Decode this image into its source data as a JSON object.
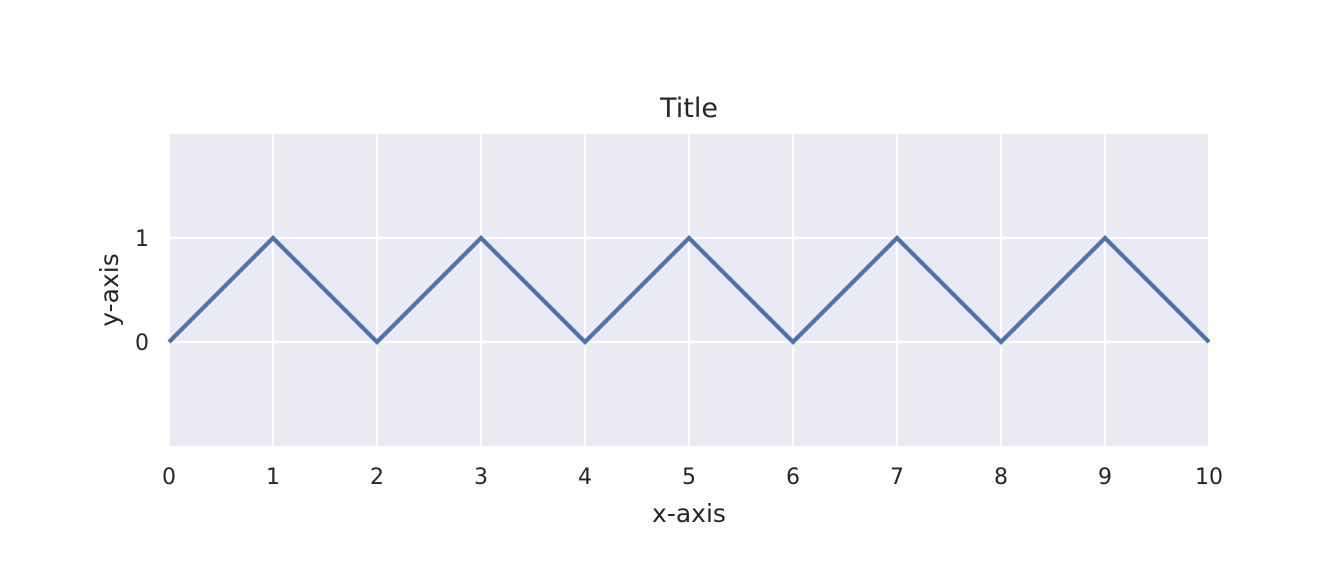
{
  "chart_data": {
    "type": "line",
    "title": "Title",
    "xlabel": "x-axis",
    "ylabel": "y-axis",
    "x": [
      0,
      1,
      2,
      3,
      4,
      5,
      6,
      7,
      8,
      9,
      10
    ],
    "series": [
      {
        "values": [
          0,
          1,
          0,
          1,
          0,
          1,
          0,
          1,
          0,
          1,
          0
        ],
        "color": "#4c72b0"
      }
    ],
    "xlim": [
      0,
      10
    ],
    "ylim": [
      -1,
      2
    ],
    "xticks": [
      0,
      1,
      2,
      3,
      4,
      5,
      6,
      7,
      8,
      9,
      10
    ],
    "yticks": [
      0,
      1
    ],
    "grid": true,
    "background_color": "#eaeaf2"
  }
}
